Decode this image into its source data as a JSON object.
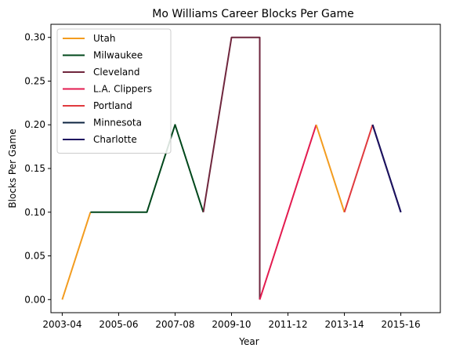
{
  "chart_data": {
    "type": "line",
    "title": "Mo Williams Career Blocks Per Game",
    "xlabel": "Year",
    "ylabel": "Blocks Per Game",
    "x_tick_labels": [
      "2003-04",
      "2005-06",
      "2007-08",
      "2009-10",
      "2011-12",
      "2013-14",
      "2015-16"
    ],
    "y_tick_labels": [
      "0.00",
      "0.05",
      "0.10",
      "0.15",
      "0.20",
      "0.25",
      "0.30"
    ],
    "y_ticks": [
      0,
      0.05,
      0.1,
      0.15,
      0.2,
      0.25,
      0.3
    ],
    "ylim": [
      -0.015,
      0.315
    ],
    "xlim": [
      2002.6,
      2016.4
    ],
    "grid": false,
    "legend_position": "upper-left",
    "series": [
      {
        "name": "Utah",
        "color": "#f39c1f",
        "points": [
          [
            2003,
            0.0
          ],
          [
            2004,
            0.1
          ]
        ]
      },
      {
        "name": "Milwaukee",
        "color": "#00471b",
        "points": [
          [
            2004,
            0.1
          ],
          [
            2005,
            0.1
          ],
          [
            2006,
            0.1
          ],
          [
            2007,
            0.2
          ],
          [
            2008,
            0.1
          ]
        ]
      },
      {
        "name": "Cleveland",
        "color": "#6f263d",
        "points": [
          [
            2008,
            0.1
          ],
          [
            2009,
            0.3
          ],
          [
            2010,
            0.3
          ],
          [
            2010,
            0.0
          ]
        ]
      },
      {
        "name": "L.A. Clippers",
        "color": "#e31b4f",
        "points": [
          [
            2010,
            0.0
          ],
          [
            2011,
            0.1
          ],
          [
            2012,
            0.2
          ]
        ]
      },
      {
        "name": "Utah",
        "color": "#f39c1f",
        "points": [
          [
            2012,
            0.2
          ],
          [
            2013,
            0.1
          ]
        ]
      },
      {
        "name": "Portland",
        "color": "#e03a3e",
        "points": [
          [
            2013,
            0.1
          ],
          [
            2014,
            0.2
          ]
        ]
      },
      {
        "name": "Minnesota",
        "color": "#0c2340",
        "points": [
          [
            2014,
            0.2
          ],
          [
            2015,
            0.1
          ]
        ]
      },
      {
        "name": "Charlotte",
        "color": "#1d1160",
        "points": [
          [
            2014,
            0.2
          ],
          [
            2015,
            0.1
          ]
        ]
      }
    ],
    "legend": [
      {
        "label": "Utah",
        "color": "#f39c1f"
      },
      {
        "label": "Milwaukee",
        "color": "#00471b"
      },
      {
        "label": "Cleveland",
        "color": "#6f263d"
      },
      {
        "label": "L.A. Clippers",
        "color": "#e31b4f"
      },
      {
        "label": "Portland",
        "color": "#e03a3e"
      },
      {
        "label": "Minnesota",
        "color": "#0c2340"
      },
      {
        "label": "Charlotte",
        "color": "#1d1160"
      }
    ]
  }
}
